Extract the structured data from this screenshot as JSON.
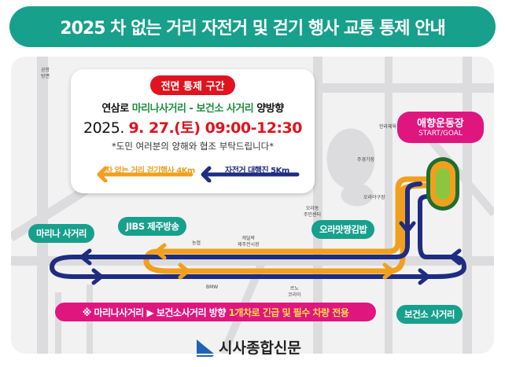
{
  "title": "2025 차 없는 거리 자전거 및 걷기 행사 교통 통제 안내",
  "info": {
    "badge": "전면 통제 구간",
    "road": "연삼로",
    "section": "마리나사거리 - 보건소 사거리",
    "direction": "양방향",
    "date_prefix": "2025.",
    "date_time": "9. 27.(토) 09:00-12:30",
    "note": "*도민 여러분의 양해와 협조 부탁드립니다*",
    "legend_walk": "차 없는 거리 걷기행사 4Km",
    "legend_bike": "자전거 대행진 5Km"
  },
  "places": {
    "start": "애향운동장",
    "start_sub": "START/GOAL",
    "marina": "마리나 사거리",
    "jibs": "JIBS 제주방송",
    "ora": "오라맛짱김밥",
    "bogeonso": "보건소 사거리"
  },
  "landmarks": {
    "airport": "공항\n방면",
    "halla_gym": "한라체육관",
    "main_stadium": "주경기장",
    "ora_ballpark": "오라야구장",
    "ora_center": "오라동\n주민센터",
    "nonghyup": "농협",
    "cadillac": "캐딜락\n제주전시장",
    "bmw": "BMW",
    "renault": "르노\n코리아"
  },
  "notice": {
    "prefix": "※ 마리나사거리 ▶ 보건소사거리 방향 ",
    "highlight": "1개차로 긴급 및 필수 차량 전용"
  },
  "logo": "시사종합신문",
  "colors": {
    "teal": "#17a08c",
    "magenta": "#e0167f",
    "red": "#e0131e",
    "bike": "#1e2d82",
    "walk": "#f0a01e",
    "green": "#1d8d3d"
  }
}
